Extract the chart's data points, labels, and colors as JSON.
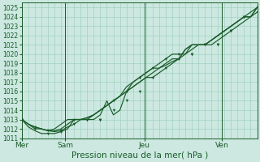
{
  "title": "",
  "xlabel": "Pression niveau de la mer( hPa )",
  "ylim": [
    1011,
    1025.5
  ],
  "yticks": [
    1011,
    1012,
    1013,
    1014,
    1015,
    1016,
    1017,
    1018,
    1019,
    1020,
    1021,
    1022,
    1023,
    1024,
    1025
  ],
  "bg_color": "#cce8e0",
  "grid_color": "#99ccbb",
  "line_color": "#1a5c2a",
  "day_positions": [
    0.0,
    0.185,
    0.52,
    0.85,
    1.0
  ],
  "day_labels": [
    "Mer",
    "Sam",
    "Jeu",
    "Ven"
  ],
  "series1": [
    1013.0,
    1012.5,
    1012.2,
    1012.0,
    1011.8,
    1011.7,
    1011.8,
    1012.2,
    1012.5,
    1013.0,
    1013.2,
    1013.5,
    1014.0,
    1014.5,
    1015.0,
    1015.5,
    1016.0,
    1016.5,
    1017.0,
    1017.5,
    1018.0,
    1018.5,
    1018.8,
    1019.2,
    1019.5,
    1020.0,
    1020.5,
    1021.0,
    1021.0,
    1021.5,
    1022.0,
    1022.5,
    1023.0,
    1023.5,
    1024.0,
    1024.5,
    1025.0
  ],
  "series2": [
    1013.0,
    1012.2,
    1011.8,
    1011.5,
    1011.5,
    1011.5,
    1011.7,
    1012.0,
    1013.0,
    1013.0,
    1013.0,
    1013.0,
    1013.5,
    1015.0,
    1013.5,
    1014.0,
    1016.0,
    1017.0,
    1017.5,
    1018.0,
    1018.5,
    1019.0,
    1019.5,
    1020.0,
    1020.0,
    1020.0,
    1021.0,
    1021.0,
    1021.0,
    1021.5,
    1022.0,
    1022.5,
    1023.0,
    1023.5,
    1024.0,
    1024.0,
    1024.5
  ],
  "series3": [
    1013.0,
    1012.5,
    1012.2,
    1012.0,
    1011.8,
    1011.8,
    1012.0,
    1012.5,
    1013.0,
    1013.0,
    1013.2,
    1013.5,
    1014.0,
    1014.5,
    1015.0,
    1015.5,
    1016.5,
    1017.0,
    1017.5,
    1018.0,
    1018.5,
    1018.5,
    1019.0,
    1019.5,
    1019.5,
    1020.5,
    1021.0,
    1021.0,
    1021.0,
    1021.0,
    1021.5,
    1022.0,
    1022.5,
    1023.0,
    1023.5,
    1024.0,
    1025.0
  ],
  "series4": [
    1013.0,
    1012.5,
    1012.0,
    1012.0,
    1011.8,
    1012.0,
    1012.5,
    1013.0,
    1013.0,
    1013.0,
    1013.0,
    1013.5,
    1014.0,
    1014.5,
    1015.0,
    1015.5,
    1016.0,
    1016.5,
    1017.0,
    1017.5,
    1017.5,
    1018.0,
    1018.5,
    1019.0,
    1019.5,
    1020.5,
    1021.0,
    1021.0,
    1021.0,
    1021.5,
    1022.0,
    1022.5,
    1023.0,
    1023.5,
    1024.0,
    1024.0,
    1025.0
  ],
  "marker1_x": [
    0,
    2,
    4,
    6,
    8,
    10,
    12,
    14,
    16,
    18,
    20,
    22,
    24,
    26,
    28,
    30,
    32,
    34,
    36
  ],
  "marker1_y": [
    1013.0,
    1012.2,
    1011.8,
    1011.8,
    1012.5,
    1013.0,
    1013.0,
    1014.0,
    1015.0,
    1016.0,
    1017.5,
    1018.5,
    1019.5,
    1020.0,
    1021.0,
    1021.0,
    1022.5,
    1024.0,
    1025.0
  ],
  "marker2_x": [
    0,
    2,
    4,
    6,
    8,
    10,
    12,
    14,
    16,
    18,
    20,
    22,
    24,
    26,
    28,
    30,
    32,
    34,
    36
  ],
  "marker2_y": [
    1013.0,
    1012.0,
    1011.5,
    1011.7,
    1013.0,
    1013.0,
    1013.0,
    1015.0,
    1016.0,
    1017.5,
    1018.5,
    1019.5,
    1020.0,
    1020.0,
    1021.0,
    1021.0,
    1022.5,
    1024.0,
    1024.5
  ]
}
